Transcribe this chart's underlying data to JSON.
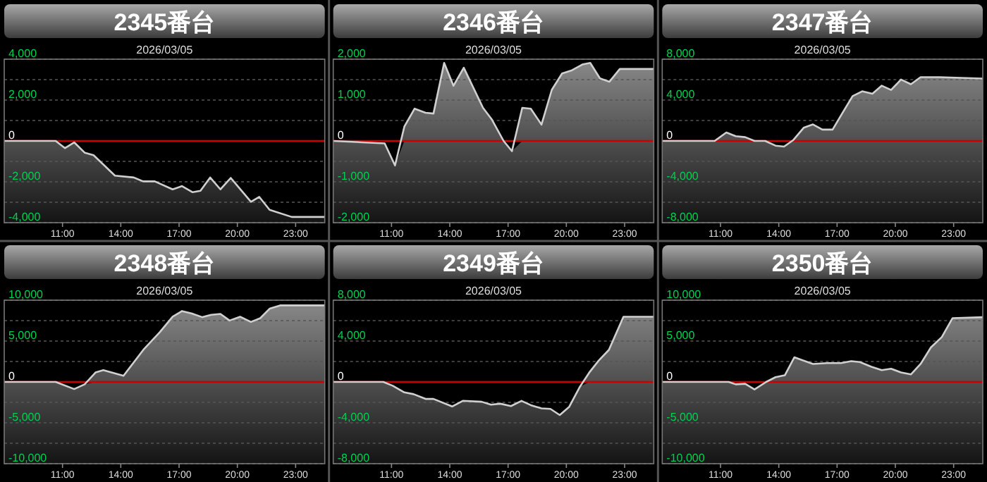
{
  "chart_data": [
    {
      "type": "area",
      "title": "2345番台",
      "subtitle": "2026/03/05",
      "grid": "y",
      "x": [
        8,
        10.65,
        11.13,
        11.6,
        12.15,
        12.6,
        13.7,
        14.67,
        15.15,
        15.75,
        16.67,
        17.15,
        17.7,
        18.1,
        18.6,
        19.13,
        19.66,
        20.7,
        21.13,
        21.66,
        22.8,
        24.5
      ],
      "series": [
        {
          "color": "#d0d0d0",
          "values": [
            0,
            0,
            -350,
            -70,
            -580,
            -700,
            -1700,
            -1790,
            -1980,
            -1980,
            -2370,
            -2210,
            -2510,
            -2440,
            -1790,
            -2370,
            -1810,
            -2980,
            -2740,
            -3370,
            -3720,
            -3720
          ]
        }
      ],
      "xlim": [
        8,
        24.5
      ],
      "xticks": [
        {
          "value": 11,
          "label": "11:00"
        },
        {
          "value": 14,
          "label": "14:00"
        },
        {
          "value": 17,
          "label": "17:00"
        },
        {
          "value": 20,
          "label": "20:00"
        },
        {
          "value": 23,
          "label": "23:00"
        }
      ],
      "ylim": [
        -4000,
        4000
      ],
      "yticks": [
        {
          "value": 4000,
          "label": "4,000"
        },
        {
          "value": 3000,
          "label": null
        },
        {
          "value": 2000,
          "label": "2,000"
        },
        {
          "value": 1000,
          "label": null
        },
        {
          "value": 0,
          "label": "0"
        },
        {
          "value": -1000,
          "label": null
        },
        {
          "value": -2000,
          "label": "-2,000"
        },
        {
          "value": -3000,
          "label": null
        },
        {
          "value": -4000,
          "label": "-4,000"
        }
      ],
      "ref_lines": [
        {
          "axis": "y",
          "value": 0,
          "color": "#cc0000"
        }
      ]
    },
    {
      "type": "area",
      "title": "2346番台",
      "subtitle": "2026/03/05",
      "grid": "y",
      "x": [
        8,
        10.65,
        11.18,
        11.66,
        12.19,
        12.75,
        13.16,
        13.71,
        14.19,
        14.72,
        15.71,
        16.17,
        16.77,
        17.2,
        17.73,
        18.17,
        18.72,
        19.25,
        19.78,
        20.29,
        20.82,
        21.23,
        21.73,
        22.22,
        22.75,
        24.5
      ],
      "series": [
        {
          "color": "#d0d0d0",
          "values": [
            0,
            -60,
            -600,
            350,
            790,
            690,
            670,
            1910,
            1350,
            1790,
            810,
            520,
            0,
            -250,
            810,
            790,
            400,
            1250,
            1650,
            1730,
            1870,
            1910,
            1530,
            1450,
            1760,
            1760
          ]
        }
      ],
      "xlim": [
        8,
        24.5
      ],
      "xticks": [
        {
          "value": 11,
          "label": "11:00"
        },
        {
          "value": 14,
          "label": "14:00"
        },
        {
          "value": 17,
          "label": "17:00"
        },
        {
          "value": 20,
          "label": "20:00"
        },
        {
          "value": 23,
          "label": "23:00"
        }
      ],
      "ylim": [
        -2000,
        2000
      ],
      "yticks": [
        {
          "value": 2000,
          "label": "2,000"
        },
        {
          "value": 1500,
          "label": null
        },
        {
          "value": 1000,
          "label": "1,000"
        },
        {
          "value": 500,
          "label": null
        },
        {
          "value": 0,
          "label": "0"
        },
        {
          "value": -500,
          "label": null
        },
        {
          "value": -1000,
          "label": "-1,000"
        },
        {
          "value": -1500,
          "label": null
        },
        {
          "value": -2000,
          "label": "-2,000"
        }
      ],
      "ref_lines": [
        {
          "axis": "y",
          "value": 0,
          "color": "#cc0000"
        }
      ]
    },
    {
      "type": "area",
      "title": "2347番台",
      "subtitle": "2026/03/05",
      "grid": "y",
      "x": [
        8,
        10.7,
        11.3,
        11.78,
        12.27,
        12.75,
        13.3,
        13.83,
        14.27,
        14.75,
        15.28,
        15.76,
        16.24,
        16.77,
        17.33,
        17.8,
        18.29,
        18.82,
        19.3,
        19.78,
        20.29,
        20.8,
        21.3,
        22.27,
        24.5
      ],
      "series": [
        {
          "color": "#d0d0d0",
          "values": [
            0,
            0,
            830,
            460,
            370,
            0,
            0,
            -460,
            -550,
            90,
            1290,
            1620,
            1110,
            1110,
            2910,
            4390,
            4860,
            4620,
            5410,
            4990,
            6010,
            5550,
            6240,
            6240,
            6100
          ]
        }
      ],
      "xlim": [
        8,
        24.5
      ],
      "xticks": [
        {
          "value": 11,
          "label": "11:00"
        },
        {
          "value": 14,
          "label": "14:00"
        },
        {
          "value": 17,
          "label": "17:00"
        },
        {
          "value": 20,
          "label": "20:00"
        },
        {
          "value": 23,
          "label": "23:00"
        }
      ],
      "ylim": [
        -8000,
        8000
      ],
      "yticks": [
        {
          "value": 8000,
          "label": "8,000"
        },
        {
          "value": 6000,
          "label": null
        },
        {
          "value": 4000,
          "label": "4,000"
        },
        {
          "value": 2000,
          "label": null
        },
        {
          "value": 0,
          "label": "0"
        },
        {
          "value": -2000,
          "label": null
        },
        {
          "value": -4000,
          "label": "-4,000"
        },
        {
          "value": -6000,
          "label": null
        },
        {
          "value": -8000,
          "label": "-8,000"
        }
      ],
      "ref_lines": [
        {
          "axis": "y",
          "value": 0,
          "color": "#cc0000"
        }
      ]
    },
    {
      "type": "area",
      "title": "2348番台",
      "subtitle": "2026/03/05",
      "grid": "y",
      "x": [
        8,
        10.65,
        11.6,
        12.14,
        12.7,
        13.1,
        14.14,
        15.16,
        16.0,
        16.67,
        17.15,
        17.64,
        18.2,
        18.65,
        19.13,
        19.6,
        20.14,
        20.7,
        21.18,
        21.66,
        22.2,
        24.5
      ],
      "series": [
        {
          "color": "#d0d0d0",
          "values": [
            0,
            0,
            -870,
            -290,
            1160,
            1450,
            750,
            3930,
            6070,
            7980,
            8670,
            8380,
            7920,
            8210,
            8320,
            7510,
            7980,
            7340,
            7800,
            8960,
            9360,
            9360
          ]
        }
      ],
      "xlim": [
        8,
        24.5
      ],
      "xticks": [
        {
          "value": 11,
          "label": "11:00"
        },
        {
          "value": 14,
          "label": "14:00"
        },
        {
          "value": 17,
          "label": "17:00"
        },
        {
          "value": 20,
          "label": "20:00"
        },
        {
          "value": 23,
          "label": "23:00"
        }
      ],
      "ylim": [
        -10000,
        10000
      ],
      "yticks": [
        {
          "value": 10000,
          "label": "10,000"
        },
        {
          "value": 7500,
          "label": null
        },
        {
          "value": 5000,
          "label": "5,000"
        },
        {
          "value": 2500,
          "label": null
        },
        {
          "value": 0,
          "label": "0"
        },
        {
          "value": -2500,
          "label": null
        },
        {
          "value": -5000,
          "label": "-5,000"
        },
        {
          "value": -7500,
          "label": null
        },
        {
          "value": -10000,
          "label": "-10,000"
        }
      ],
      "ref_lines": [
        {
          "axis": "y",
          "value": 0,
          "color": "#cc0000"
        }
      ]
    },
    {
      "type": "area",
      "title": "2349番台",
      "subtitle": "2026/03/05",
      "grid": "y",
      "x": [
        8,
        10.58,
        11.06,
        11.66,
        12.14,
        12.75,
        13.16,
        14.12,
        14.67,
        15.64,
        16.12,
        16.6,
        17.15,
        17.69,
        18.17,
        18.72,
        19.18,
        19.66,
        20.14,
        20.7,
        21.18,
        21.66,
        22.19,
        22.94,
        24.5
      ],
      "series": [
        {
          "color": "#d0d0d0",
          "values": [
            0,
            0,
            -370,
            -1020,
            -1200,
            -1660,
            -1660,
            -2400,
            -1850,
            -1940,
            -2220,
            -2130,
            -2360,
            -1850,
            -2270,
            -2590,
            -2640,
            -3240,
            -2450,
            -460,
            920,
            2080,
            3140,
            6380,
            6380
          ]
        }
      ],
      "xlim": [
        8,
        24.5
      ],
      "xticks": [
        {
          "value": 11,
          "label": "11:00"
        },
        {
          "value": 14,
          "label": "14:00"
        },
        {
          "value": 17,
          "label": "17:00"
        },
        {
          "value": 20,
          "label": "20:00"
        },
        {
          "value": 23,
          "label": "23:00"
        }
      ],
      "ylim": [
        -8000,
        8000
      ],
      "yticks": [
        {
          "value": 8000,
          "label": "8,000"
        },
        {
          "value": 6000,
          "label": null
        },
        {
          "value": 4000,
          "label": "4,000"
        },
        {
          "value": 2000,
          "label": null
        },
        {
          "value": 0,
          "label": "0"
        },
        {
          "value": -2000,
          "label": null
        },
        {
          "value": -4000,
          "label": "-4,000"
        },
        {
          "value": -6000,
          "label": null
        },
        {
          "value": -8000,
          "label": "-8,000"
        }
      ],
      "ref_lines": [
        {
          "axis": "y",
          "value": 0,
          "color": "#cc0000"
        }
      ]
    },
    {
      "type": "area",
      "title": "2350番台",
      "subtitle": "2026/03/05",
      "grid": "y",
      "x": [
        8,
        11.42,
        11.78,
        12.27,
        12.75,
        13.35,
        13.83,
        14.31,
        14.8,
        15.76,
        16.48,
        17.2,
        17.73,
        18.17,
        18.77,
        19.3,
        19.78,
        20.29,
        20.8,
        21.3,
        21.83,
        22.39,
        22.94,
        24.5
      ],
      "series": [
        {
          "color": "#d0d0d0",
          "values": [
            0,
            0,
            -290,
            -230,
            -920,
            0,
            580,
            810,
            3010,
            2200,
            2310,
            2310,
            2540,
            2430,
            1850,
            1450,
            1620,
            1160,
            920,
            2200,
            4220,
            5490,
            7800,
            7920
          ]
        }
      ],
      "xlim": [
        8,
        24.5
      ],
      "xticks": [
        {
          "value": 11,
          "label": "11:00"
        },
        {
          "value": 14,
          "label": "14:00"
        },
        {
          "value": 17,
          "label": "17:00"
        },
        {
          "value": 20,
          "label": "20:00"
        },
        {
          "value": 23,
          "label": "23:00"
        }
      ],
      "ylim": [
        -10000,
        10000
      ],
      "yticks": [
        {
          "value": 10000,
          "label": "10,000"
        },
        {
          "value": 7500,
          "label": null
        },
        {
          "value": 5000,
          "label": "5,000"
        },
        {
          "value": 2500,
          "label": null
        },
        {
          "value": 0,
          "label": "0"
        },
        {
          "value": -2500,
          "label": null
        },
        {
          "value": -5000,
          "label": "-5,000"
        },
        {
          "value": -7500,
          "label": null
        },
        {
          "value": -10000,
          "label": "-10,000"
        }
      ],
      "ref_lines": [
        {
          "axis": "y",
          "value": 0,
          "color": "#cc0000"
        }
      ]
    }
  ]
}
